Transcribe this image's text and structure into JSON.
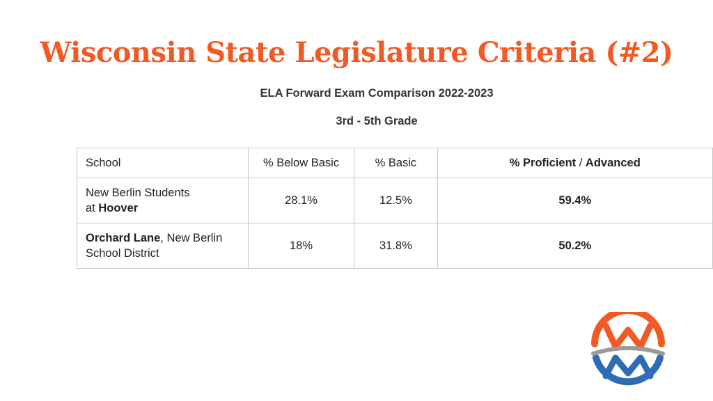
{
  "slide": {
    "title": "Wisconsin State Legislature Criteria (#2)",
    "subtitle": "ELA Forward Exam Comparison 2022-2023",
    "grade": "3rd - 5th Grade"
  },
  "table": {
    "headers": {
      "school": "School",
      "below_basic": "% Below Basic",
      "basic": "% Basic",
      "proficient": "% Proficient",
      "separator": " / ",
      "advanced": "Advanced"
    },
    "rows": [
      {
        "school_prefix": "New Berlin Students",
        "school_mid": "at ",
        "school_bold": "Hoover",
        "below_basic": "28.1%",
        "basic": "12.5%",
        "proficient_advanced": "59.4%"
      },
      {
        "school_bold": "Orchard Lane",
        "school_rest": ", New Berlin",
        "school_line2": "School District",
        "below_basic": "18%",
        "basic": "31.8%",
        "proficient_advanced": "50.2%"
      }
    ]
  },
  "logo": {
    "icon": "wm-circle-logo",
    "colors": {
      "orange": "#f15a24",
      "blue": "#2e6db4",
      "gray": "#9a9a9a"
    }
  }
}
